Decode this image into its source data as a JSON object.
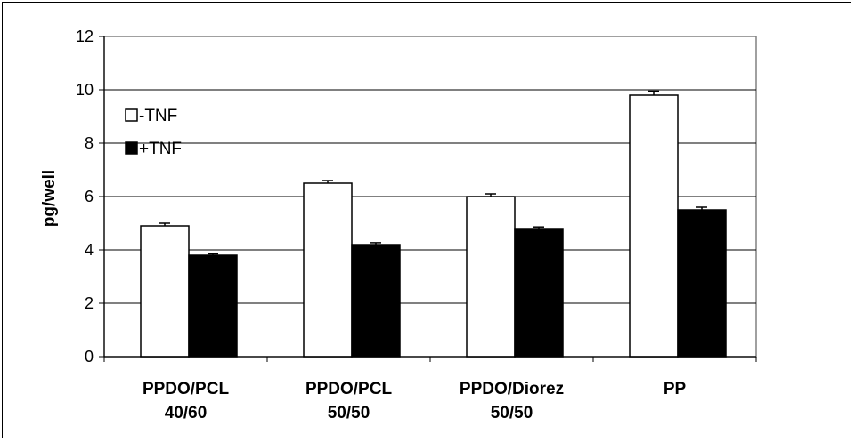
{
  "chart_data": {
    "type": "bar",
    "ylabel": "pg/well",
    "xlabel": "",
    "ylim": [
      0,
      12
    ],
    "yticks": [
      0,
      2,
      4,
      6,
      8,
      10,
      12
    ],
    "grid": true,
    "legend_position": "left",
    "categories": [
      [
        "PPDO/PCL",
        "40/60"
      ],
      [
        "PPDO/PCL",
        "50/50"
      ],
      [
        "PPDO/Diorez",
        "50/50"
      ],
      [
        "PP",
        ""
      ]
    ],
    "series": [
      {
        "name": "-TNF",
        "fill": "#ffffff",
        "values": [
          4.9,
          6.5,
          6.0,
          9.8
        ],
        "errors": [
          0.1,
          0.1,
          0.1,
          0.15
        ]
      },
      {
        "name": "+TNF",
        "fill": "#000000",
        "values": [
          3.8,
          4.2,
          4.8,
          5.5
        ],
        "errors": [
          0.05,
          0.07,
          0.06,
          0.1
        ]
      }
    ]
  }
}
